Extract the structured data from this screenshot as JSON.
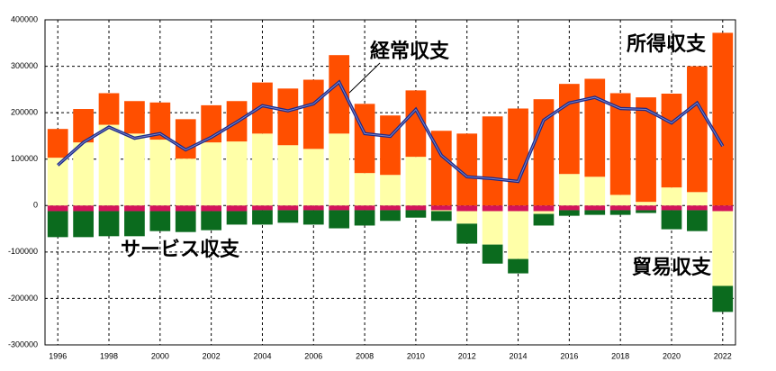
{
  "chart_data": {
    "type": "stacked-bar-line",
    "categories": [
      "1996",
      null,
      "1998",
      null,
      "2000",
      null,
      "2002",
      null,
      "2004",
      null,
      "2006",
      null,
      "2008",
      null,
      "2010",
      null,
      "2012",
      null,
      "2014",
      null,
      "2016",
      null,
      "2018",
      null,
      "2020",
      null,
      "2022"
    ],
    "ylim": [
      -300000,
      400000
    ],
    "yticks": [
      -300000,
      -200000,
      -100000,
      0,
      100000,
      200000,
      300000,
      400000
    ],
    "grid": true,
    "series": [
      {
        "name": "貿易収支",
        "color": "#ffffa8",
        "values": [
          103000,
          136000,
          174000,
          155000,
          142000,
          101000,
          136000,
          138000,
          155000,
          130000,
          122000,
          155000,
          70000,
          66000,
          105000,
          -2000,
          -27000,
          -72000,
          -103000,
          -6000,
          68000,
          62000,
          23000,
          8000,
          39000,
          29000,
          -161000
        ]
      },
      {
        "name": "所得収支",
        "color": "#ff4f00",
        "values": [
          62000,
          72000,
          68000,
          70000,
          80000,
          85000,
          80000,
          87000,
          110000,
          122000,
          149000,
          169000,
          149000,
          128000,
          143000,
          161000,
          155000,
          192000,
          209000,
          229000,
          194000,
          211000,
          219000,
          225000,
          202000,
          271000,
          372000
        ]
      },
      {
        "color": "#d4145a",
        "values": [
          -12000,
          -12000,
          -12000,
          -12000,
          -12000,
          -12000,
          -12000,
          -12000,
          -10000,
          -10000,
          -10000,
          -10000,
          -10000,
          -10000,
          -10000,
          -10000,
          -12000,
          -12000,
          -12000,
          -12000,
          -10000,
          -10000,
          -10000,
          -10000,
          -10000,
          -10000,
          -12000
        ]
      },
      {
        "name": "サービス収支",
        "color": "#0b6b1e",
        "values": [
          -56000,
          -56000,
          -54000,
          -54000,
          -43000,
          -45000,
          -41000,
          -29000,
          -31000,
          -27000,
          -31000,
          -39000,
          -33000,
          -23000,
          -16000,
          -21000,
          -43000,
          -41000,
          -31000,
          -25000,
          -12000,
          -10000,
          -10000,
          -6000,
          -41000,
          -45000,
          -56000
        ]
      },
      {
        "name": "経常収支",
        "color": "#1c2a8a",
        "type": "line",
        "values": [
          87000,
          136000,
          169000,
          145000,
          155000,
          120000,
          147000,
          180000,
          215000,
          204000,
          219000,
          266000,
          155000,
          149000,
          207000,
          108000,
          62000,
          58000,
          52000,
          184000,
          221000,
          233000,
          209000,
          207000,
          178000,
          221000,
          128000
        ]
      }
    ]
  }
}
